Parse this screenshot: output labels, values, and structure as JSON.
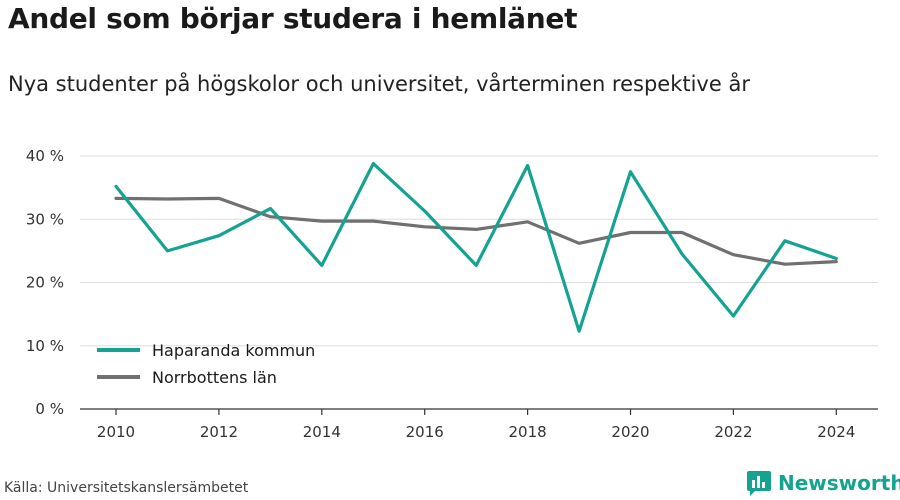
{
  "header": {
    "title": "Andel som börjar studera i hemlänet",
    "subtitle": "Nya studenter på högskolor och universitet, vårterminen respektive år"
  },
  "footer": {
    "source": "Källa: Universitetskanslersämbetet",
    "brand": "Newsworthy"
  },
  "colors": {
    "haparanda": "#15a391",
    "norrbotten": "#707070",
    "brand": "#15a391"
  },
  "chart_data": {
    "type": "line",
    "x": [
      2010,
      2011,
      2012,
      2013,
      2014,
      2015,
      2016,
      2017,
      2018,
      2019,
      2020,
      2021,
      2022,
      2023,
      2024
    ],
    "series": [
      {
        "name": "Haparanda kommun",
        "values": [
          35.2,
          25.0,
          27.4,
          31.7,
          22.7,
          38.8,
          31.3,
          22.7,
          38.5,
          12.3,
          37.5,
          24.5,
          14.7,
          26.6,
          23.8
        ]
      },
      {
        "name": "Norrbottens län",
        "values": [
          33.3,
          33.2,
          33.3,
          30.4,
          29.7,
          29.7,
          28.8,
          28.4,
          29.6,
          26.2,
          27.9,
          27.9,
          24.4,
          22.9,
          23.3
        ]
      }
    ],
    "ylim": [
      0,
      40
    ],
    "y_ticks": [
      "0 %",
      "10 %",
      "20 %",
      "30 %",
      "40 %"
    ],
    "x_ticks": [
      "2010",
      "2012",
      "2014",
      "2016",
      "2018",
      "2020",
      "2022",
      "2024"
    ],
    "grid": true,
    "legend_position": "bottom-left"
  }
}
